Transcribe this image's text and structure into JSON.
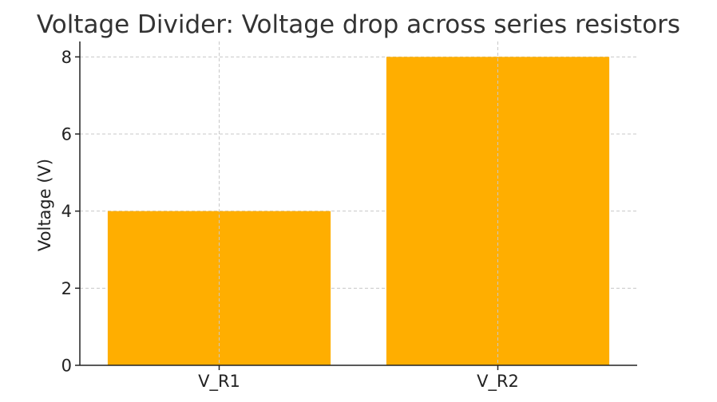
{
  "chart_data": {
    "type": "bar",
    "title": "Voltage Divider: Voltage drop across series resistors",
    "xlabel": "",
    "ylabel": "Voltage (V)",
    "categories": [
      "V_R1",
      "V_R2"
    ],
    "values": [
      4,
      8
    ],
    "ylim": [
      0,
      8.4
    ],
    "yticks": [
      0,
      2,
      4,
      6,
      8
    ],
    "grid": true,
    "bar_color": "#FFAE00",
    "grid_color": "#C8C8C8"
  }
}
